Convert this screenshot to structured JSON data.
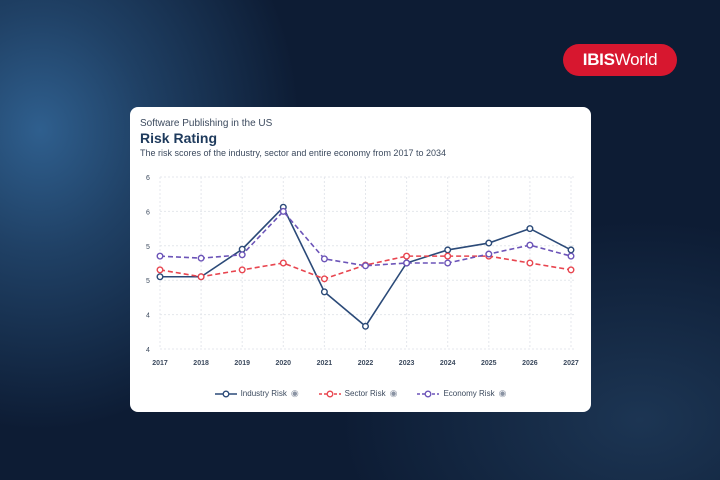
{
  "brand": {
    "logo_bold": "IBIS",
    "logo_rest": "World"
  },
  "card": {
    "supertitle": "Software Publishing in the US",
    "title": "Risk Rating",
    "subtitle": "The risk scores of the industry, sector and entire economy from 2017 to 2034"
  },
  "chart_data": {
    "type": "line",
    "categories": [
      "2017",
      "2018",
      "2019",
      "2020",
      "2021",
      "2022",
      "2023",
      "2024",
      "2025",
      "2026",
      "2027"
    ],
    "y_tick_labels": [
      "6",
      "6",
      "5",
      "5",
      "4",
      "4"
    ],
    "ylim": [
      3.75,
      6.25
    ],
    "grid": true,
    "legend_position": "bottom",
    "series": [
      {
        "name": "Industry Risk",
        "color": "#2b4a78",
        "dash": "solid",
        "values": [
          4.8,
          4.8,
          5.2,
          5.81,
          4.58,
          4.08,
          5.0,
          5.19,
          5.29,
          5.5,
          5.19
        ]
      },
      {
        "name": "Sector Risk",
        "color": "#e8454f",
        "dash": "dashed",
        "values": [
          4.9,
          4.8,
          4.9,
          5.0,
          4.77,
          4.97,
          5.1,
          5.1,
          5.1,
          5.0,
          4.9
        ]
      },
      {
        "name": "Economy Risk",
        "color": "#6c54b8",
        "dash": "dashed",
        "values": [
          5.1,
          5.07,
          5.12,
          5.75,
          5.06,
          4.96,
          5.0,
          5.0,
          5.13,
          5.26,
          5.1
        ]
      }
    ]
  }
}
